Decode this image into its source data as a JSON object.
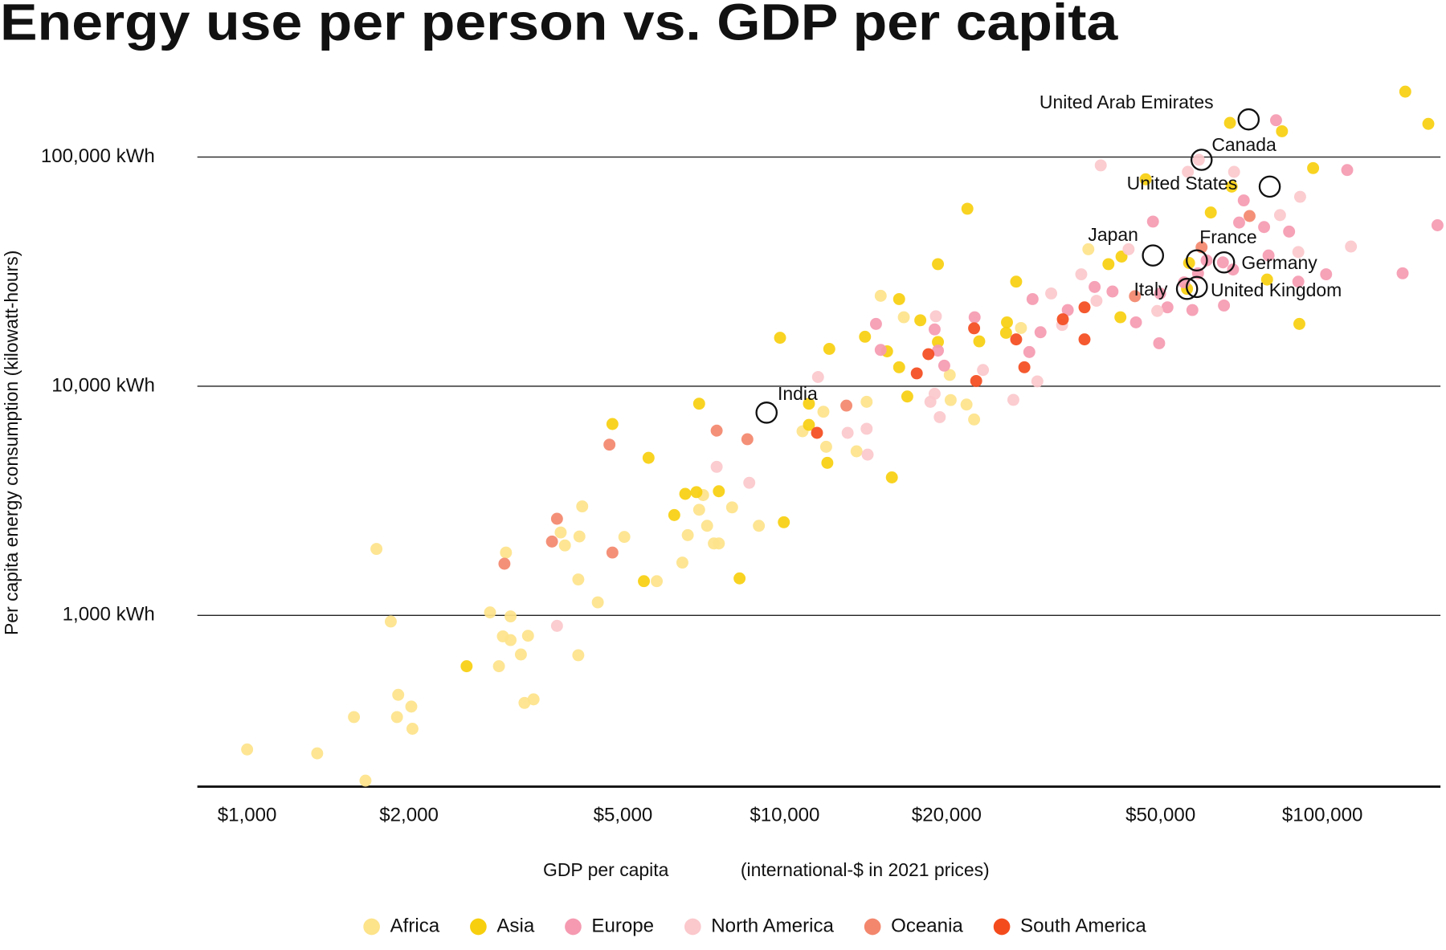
{
  "chart_data": {
    "type": "scatter",
    "title": "Energy use per person vs. GDP per capita",
    "xlabel": "GDP per capita",
    "xlabel_note": "(international-$ in 2021 prices)",
    "ylabel": "Per capita energy consumption (kilowatt-hours)",
    "xscale": "log",
    "yscale": "log",
    "xlim": [
      808,
      165800
    ],
    "ylim": [
      179,
      220000
    ],
    "xticks": [
      {
        "value": 1000,
        "label": "$1,000"
      },
      {
        "value": 2000,
        "label": "$2,000"
      },
      {
        "value": 5000,
        "label": "$5,000"
      },
      {
        "value": 10000,
        "label": "$10,000"
      },
      {
        "value": 20000,
        "label": "$20,000"
      },
      {
        "value": 50000,
        "label": "$50,000"
      },
      {
        "value": 100000,
        "label": "$100,000"
      }
    ],
    "yticks": [
      {
        "value": 1000,
        "label": "1,000 kWh"
      },
      {
        "value": 10000,
        "label": "10,000 kWh"
      },
      {
        "value": 100000,
        "label": "100,000 kWh"
      }
    ],
    "grid": true,
    "legend": "bottom",
    "series": [
      {
        "name": "Africa",
        "color": "#fde38a",
        "x": [
          1000,
          1350,
          1580,
          1660,
          1740,
          1850,
          1900,
          1910,
          2020,
          2030,
          2830,
          2940,
          2990,
          3030,
          3090,
          3090,
          3230,
          3280,
          3330,
          3410,
          3830,
          3900,
          4130,
          4130,
          4150,
          4200,
          4490,
          5030,
          5780,
          6450,
          6600,
          6930,
          7050,
          7170,
          7380,
          7540,
          7980,
          8950,
          10790,
          11800,
          11940,
          13600,
          14200,
          15080,
          16650,
          20270,
          20350,
          21780,
          22500,
          27500,
          36700
        ],
        "values": [
          260,
          250,
          360,
          190,
          1950,
          940,
          360,
          450,
          400,
          320,
          1030,
          600,
          810,
          1880,
          990,
          780,
          675,
          415,
          815,
          430,
          2300,
          2020,
          670,
          1435,
          2210,
          2990,
          1140,
          2200,
          1410,
          1700,
          2240,
          2890,
          3350,
          2460,
          2060,
          2060,
          2960,
          2460,
          6360,
          7740,
          5440,
          5200,
          8550,
          24800,
          20000,
          11200,
          8700,
          8320,
          7160,
          17950,
          39600
        ]
      },
      {
        "name": "Asia",
        "color": "#f7cf0e",
        "x": [
          2560,
          4780,
          5580,
          5470,
          6230,
          6530,
          6850,
          6930,
          7540,
          8240,
          9960,
          9800,
          11090,
          11090,
          12000,
          12100,
          14100,
          15500,
          15820,
          16320,
          16320,
          16900,
          17870,
          19270,
          19270,
          21860,
          23000,
          25800,
          25900,
          26940,
          40000,
          42100,
          42300,
          46900,
          56000,
          56500,
          62000,
          67300,
          67800,
          78900,
          84100,
          90600,
          96100,
          142600,
          157400
        ],
        "values": [
          600,
          6840,
          4870,
          1410,
          2740,
          3390,
          3450,
          8390,
          3480,
          1450,
          2550,
          16270,
          8390,
          6780,
          4630,
          14550,
          16440,
          14200,
          4000,
          24000,
          12100,
          9020,
          19400,
          15600,
          34100,
          59500,
          15700,
          17100,
          19000,
          28600,
          34100,
          20000,
          36800,
          80000,
          26600,
          34500,
          57300,
          141000,
          74300,
          29200,
          129600,
          18700,
          89500,
          193000,
          139600
        ]
      },
      {
        "name": "Europe",
        "color": "#f59ab1",
        "x": [
          14780,
          15080,
          19000,
          19270,
          19800,
          22550,
          28500,
          29900,
          28900,
          33600,
          37700,
          40700,
          45000,
          48400,
          49700,
          49900,
          51500,
          55300,
          57300,
          58700,
          60900,
          65300,
          65600,
          68200,
          71400,
          70000,
          77900,
          79400,
          82000,
          86700,
          90200,
          101600,
          111200,
          141000,
          163700
        ],
        "values": [
          18700,
          14400,
          17700,
          14300,
          12300,
          20000,
          14100,
          17200,
          24000,
          21500,
          27100,
          25900,
          19000,
          52300,
          15400,
          25400,
          22100,
          28400,
          21500,
          31100,
          35400,
          34700,
          22500,
          32300,
          64700,
          51800,
          49500,
          37200,
          144800,
          47300,
          28600,
          30800,
          87800,
          31100,
          50400
        ]
      },
      {
        "name": "North America",
        "color": "#fbc8cc",
        "x": [
          3770,
          7470,
          8590,
          11530,
          13090,
          14200,
          14260,
          18660,
          19000,
          19100,
          19420,
          23370,
          26620,
          29500,
          31300,
          32800,
          35600,
          38000,
          38700,
          43600,
          49300,
          56200,
          58900,
          68500,
          83400,
          90900,
          90200,
          113000
        ],
        "values": [
          900,
          4450,
          3790,
          10970,
          6260,
          6520,
          5030,
          8550,
          9270,
          20200,
          7330,
          11770,
          8720,
          10500,
          25400,
          18500,
          30800,
          23600,
          92000,
          39600,
          21300,
          86200,
          97300,
          86200,
          55800,
          67100,
          38500,
          40700
        ]
      },
      {
        "name": "Oceania",
        "color": "#f3876d",
        "x": [
          3010,
          3690,
          3770,
          4720,
          4780,
          7470,
          8520,
          13020,
          44800,
          59600,
          73200
        ],
        "values": [
          1680,
          2100,
          2640,
          5560,
          1880,
          6400,
          5870,
          8230,
          24700,
          40400,
          55300
        ]
      },
      {
        "name": "South America",
        "color": "#f44b1d",
        "x": [
          11480,
          17600,
          18500,
          22500,
          22700,
          26940,
          27900,
          32900,
          36100,
          36100
        ],
        "values": [
          6260,
          11380,
          13800,
          17900,
          10540,
          16010,
          12100,
          19600,
          22100,
          16010
        ]
      }
    ],
    "annotations": [
      {
        "label": "United Arab Emirates",
        "x": 72900,
        "y": 146000
      },
      {
        "label": "Canada",
        "x": 59600,
        "y": 97300
      },
      {
        "label": "United States",
        "x": 79800,
        "y": 74300
      },
      {
        "label": "Japan",
        "x": 48400,
        "y": 37200
      },
      {
        "label": "France",
        "x": 58400,
        "y": 35400
      },
      {
        "label": "Germany",
        "x": 65600,
        "y": 34700
      },
      {
        "label": "Italy",
        "x": 56000,
        "y": 26600
      },
      {
        "label": "United Kingdom",
        "x": 58400,
        "y": 27100
      },
      {
        "label": "India",
        "x": 9250,
        "y": 7670
      }
    ]
  }
}
